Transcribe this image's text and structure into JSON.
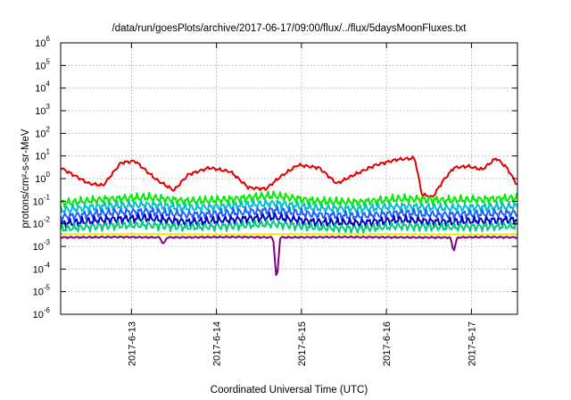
{
  "chart_data": {
    "type": "line",
    "title": "/data/run/goesPlots/archive/2017-06-17/09:00/flux/../flux/5daysMoonFluxes.txt",
    "xlabel": "Coordinated Universal Time (UTC)",
    "ylabel": "protons/cm²-s-sr-MeV",
    "y_scale": "log",
    "grid": true,
    "xlim": [
      "2017-06-12T04:00",
      "2017-06-17T13:00"
    ],
    "ylim": [
      1e-06,
      1000000.0
    ],
    "x_ticks": [
      "2017-6-13",
      "2017-6-14",
      "2017-6-15",
      "2017-6-16",
      "2017-6-17"
    ],
    "y_ticks": [
      {
        "base": "10",
        "exp": "-6"
      },
      {
        "base": "10",
        "exp": "-5"
      },
      {
        "base": "10",
        "exp": "-4"
      },
      {
        "base": "10",
        "exp": "-3"
      },
      {
        "base": "10",
        "exp": "-2"
      },
      {
        "base": "10",
        "exp": "-1"
      },
      {
        "base": "10",
        "exp": "0"
      },
      {
        "base": "10",
        "exp": "1"
      },
      {
        "base": "10",
        "exp": "2"
      },
      {
        "base": "10",
        "exp": "3"
      },
      {
        "base": "10",
        "exp": "4"
      },
      {
        "base": "10",
        "exp": "5"
      },
      {
        "base": "10",
        "exp": "6"
      }
    ],
    "series": [
      {
        "color": "#e00000",
        "x": [
          "2017-06-12T04:00",
          "2017-06-12T12:00",
          "2017-06-12T16:00",
          "2017-06-12T21:00",
          "2017-06-13T01:00",
          "2017-06-13T07:00",
          "2017-06-13T12:00",
          "2017-06-13T16:00",
          "2017-06-13T22:00",
          "2017-06-14T04:00",
          "2017-06-14T09:00",
          "2017-06-14T14:00",
          "2017-06-14T18:00",
          "2017-06-14T23:00",
          "2017-06-15T05:00",
          "2017-06-15T10:00",
          "2017-06-15T15:00",
          "2017-06-15T21:00",
          "2017-06-16T03:00",
          "2017-06-16T08:00",
          "2017-06-16T10:00",
          "2017-06-16T13:00",
          "2017-06-16T16:00",
          "2017-06-16T19:00",
          "2017-06-16T23:00",
          "2017-06-17T03:00",
          "2017-06-17T07:00",
          "2017-06-17T10:00",
          "2017-06-17T13:00"
        ],
        "values": [
          3.0,
          0.6,
          0.5,
          5.0,
          6.0,
          0.9,
          0.3,
          1.5,
          3.0,
          2.0,
          0.4,
          0.35,
          1.2,
          4.0,
          3.0,
          0.6,
          1.5,
          4.0,
          7.0,
          8.0,
          0.2,
          0.15,
          0.8,
          3.0,
          3.5,
          2.5,
          8.0,
          3.0,
          0.5
        ]
      },
      {
        "color": "#00ee00",
        "x": [
          "2017-06-12T04:00",
          "2017-06-12T16:00",
          "2017-06-13T04:00",
          "2017-06-13T16:00",
          "2017-06-14T04:00",
          "2017-06-14T16:00",
          "2017-06-15T04:00",
          "2017-06-15T16:00",
          "2017-06-16T04:00",
          "2017-06-16T16:00",
          "2017-06-17T04:00",
          "2017-06-17T13:00"
        ],
        "values": [
          0.08,
          0.12,
          0.15,
          0.1,
          0.12,
          0.18,
          0.1,
          0.09,
          0.13,
          0.11,
          0.12,
          0.14
        ]
      },
      {
        "color": "#00c0d0",
        "x": [
          "2017-06-12T04:00",
          "2017-06-12T16:00",
          "2017-06-13T04:00",
          "2017-06-13T16:00",
          "2017-06-14T04:00",
          "2017-06-14T16:00",
          "2017-06-15T04:00",
          "2017-06-15T16:00",
          "2017-06-16T04:00",
          "2017-06-16T16:00",
          "2017-06-17T04:00",
          "2017-06-17T13:00"
        ],
        "values": [
          0.04,
          0.06,
          0.07,
          0.05,
          0.06,
          0.08,
          0.05,
          0.045,
          0.06,
          0.05,
          0.055,
          0.06
        ]
      },
      {
        "color": "#2060ff",
        "x": [
          "2017-06-12T04:00",
          "2017-06-12T16:00",
          "2017-06-13T04:00",
          "2017-06-13T16:00",
          "2017-06-14T04:00",
          "2017-06-14T16:00",
          "2017-06-15T04:00",
          "2017-06-15T16:00",
          "2017-06-16T04:00",
          "2017-06-16T16:00",
          "2017-06-17T04:00",
          "2017-06-17T13:00"
        ],
        "values": [
          0.02,
          0.03,
          0.035,
          0.025,
          0.03,
          0.04,
          0.025,
          0.022,
          0.03,
          0.025,
          0.028,
          0.03
        ]
      },
      {
        "color": "#0000c0",
        "x": [
          "2017-06-12T04:00",
          "2017-06-12T16:00",
          "2017-06-13T04:00",
          "2017-06-13T16:00",
          "2017-06-14T04:00",
          "2017-06-14T16:00",
          "2017-06-15T04:00",
          "2017-06-15T16:00",
          "2017-06-16T04:00",
          "2017-06-16T16:00",
          "2017-06-17T04:00",
          "2017-06-17T13:00"
        ],
        "values": [
          0.01,
          0.015,
          0.018,
          0.012,
          0.015,
          0.02,
          0.012,
          0.011,
          0.015,
          0.012,
          0.014,
          0.015
        ]
      },
      {
        "color": "#00cc80",
        "x": [
          "2017-06-12T04:00",
          "2017-06-12T16:00",
          "2017-06-13T04:00",
          "2017-06-13T16:00",
          "2017-06-14T04:00",
          "2017-06-14T16:00",
          "2017-06-15T04:00",
          "2017-06-15T16:00",
          "2017-06-16T04:00",
          "2017-06-16T16:00",
          "2017-06-17T04:00",
          "2017-06-17T13:00"
        ],
        "values": [
          0.006,
          0.008,
          0.009,
          0.007,
          0.008,
          0.01,
          0.007,
          0.006,
          0.008,
          0.007,
          0.0075,
          0.008
        ]
      },
      {
        "color": "#f0f000",
        "x": [
          "2017-06-12T04:00",
          "2017-06-13T04:00",
          "2017-06-14T04:00",
          "2017-06-14T16:00",
          "2017-06-15T04:00",
          "2017-06-16T04:00",
          "2017-06-17T04:00",
          "2017-06-17T13:00"
        ],
        "values": [
          0.0035,
          0.0036,
          0.0034,
          0.0035,
          0.0036,
          0.0035,
          0.0034,
          0.0035
        ]
      },
      {
        "color": "#800080",
        "x": [
          "2017-06-12T04:00",
          "2017-06-12T20:00",
          "2017-06-13T08:00",
          "2017-06-13T09:00",
          "2017-06-13T10:00",
          "2017-06-14T06:00",
          "2017-06-14T16:00",
          "2017-06-14T17:00",
          "2017-06-14T18:00",
          "2017-06-15T12:00",
          "2017-06-16T08:00",
          "2017-06-16T18:00",
          "2017-06-16T19:00",
          "2017-06-16T20:00",
          "2017-06-17T04:00",
          "2017-06-17T13:00"
        ],
        "values": [
          0.0025,
          0.0026,
          0.0025,
          0.0012,
          0.0025,
          0.0026,
          0.0025,
          2.5e-05,
          0.0025,
          0.0026,
          0.0025,
          0.0025,
          0.0006,
          0.0025,
          0.0026,
          0.0025
        ]
      }
    ]
  }
}
